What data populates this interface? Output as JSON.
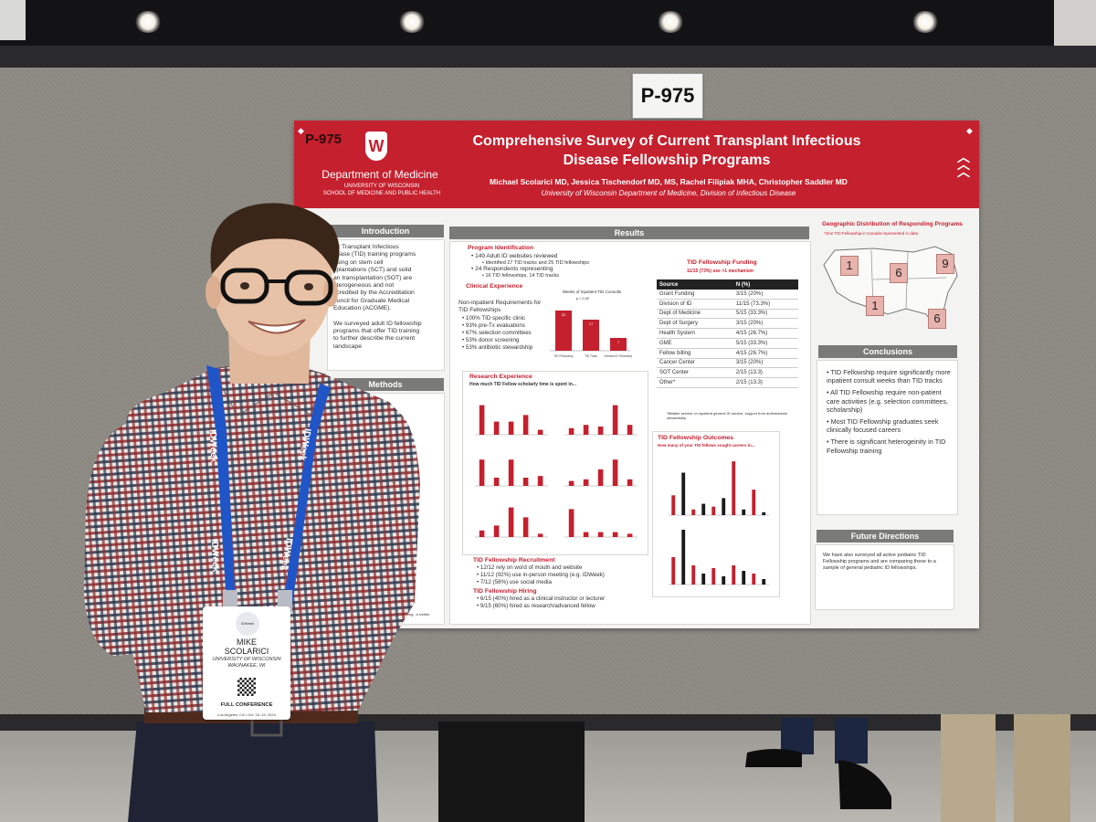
{
  "sign": {
    "label": "P-975"
  },
  "poster": {
    "number": "P-975",
    "department": "Department of Medicine",
    "university": "UNIVERSITY OF WISCONSIN",
    "school": "SCHOOL OF MEDICINE AND PUBLIC HEALTH",
    "title_line1": "Comprehensive Survey of Current Transplant Infectious",
    "title_line2": "Disease Fellowship Programs",
    "authors": "Michael Scolarici MD, Jessica Tischendorf MD, MS, Rachel Filipiak MHA, Christopher Saddler MD",
    "affiliation": "University of Wisconsin Department of Medicine, Division of Infectious Disease",
    "introduction": {
      "heading": "Introduction",
      "lines": [
        "ult Transplant Infectious",
        "sease (TID) training programs",
        "using on stem cell",
        "splantations (SCT) and solid",
        "an transplantation (SOT) are",
        "eterogeneous and not",
        "ccredited by the Accreditation",
        "ouncil for Graduate Medical",
        "Education (ACGME).",
        "",
        "We surveyed adult ID fellowship",
        "programs that offer TID training",
        "to further describe the current",
        "landscape"
      ]
    },
    "methods": {
      "heading": "Methods",
      "lines": [
        "wship websites",
        "D training.",
        "",
        "ative",
        "tracks",
        "",
        "ed",
        "unding,",
        "",
        "d",
        "ted the",
        "",
        "t email",
        "y",
        "s Disease",
        "AST",
        "",
        "p",
        "Whitney U",
        "statistical"
      ],
      "footer": "ment for Statistical Computing...d ranthe"
    },
    "results": {
      "heading": "Results",
      "program_identification": {
        "heading": "Program Identification",
        "items": [
          "149 Adult ID websites reviewed",
          "Identified 27 TID tracks and 25 TID fellowships",
          "24 Respondents representing",
          "16 TID fellowships, 14 TID tracks"
        ]
      },
      "clinical_experience": {
        "heading": "Clinical Experience",
        "intro": "Non-inpatient Requirements for TID Fellowships",
        "items": [
          "100% TID specific clinic",
          "93% pre-Tx evaluations",
          "67% selection committees",
          "53% donor screening",
          "53% antibiotic stewardship"
        ]
      },
      "research_experience": {
        "heading": "Research Experience",
        "subheading": "How much TID Fellow scholarly time is spent in..."
      },
      "recruitment": {
        "heading": "TID Fellowship Recruitment",
        "items": [
          "12/12 rely on word of mouth and website",
          "11/12 (92%) use in-person meeting (e.g. IDWeek)",
          "7/12 (58%) use social media"
        ]
      },
      "hiring": {
        "heading": "TID Fellowship Hiring",
        "items": [
          "6/15 (40%) hired as a clinical instructor or lecturer",
          "9/15 (60%) hired as research/advanced fellow"
        ]
      },
      "funding": {
        "heading": "TID Fellowship Funding",
        "subheading": "11/15 (73%) use >1 mechanism",
        "columns": [
          "Source",
          "N (%)"
        ],
        "rows": [
          [
            "Grant Funding",
            "3/15 (20%)"
          ],
          [
            "Division of ID",
            "11/15 (73.3%)"
          ],
          [
            "Dept of Medicine",
            "5/15 (33.3%)"
          ],
          [
            "Dept of Surgery",
            "3/15 (20%)"
          ],
          [
            "Health System",
            "4/15 (26.7%)"
          ],
          [
            "GME",
            "5/15 (33.3%)"
          ],
          [
            "Fellow billing",
            "4/15 (26.7%)"
          ],
          [
            "Cancer Center",
            "3/15 (20%)"
          ],
          [
            "SOT Center",
            "2/15 (13.3)"
          ],
          [
            "Other*",
            "2/15 (13.3)"
          ]
        ],
        "footnote": "*Billable service on inpatient general ID service, support from antimicrobial stewardship"
      },
      "outcomes": {
        "heading": "TID Fellowship Outcomes",
        "subheading": "How many of your TID fellows sought careers in..."
      }
    },
    "geographic": {
      "heading": "Geographic Distribution of Responding Programs",
      "note": "*One TID Fellowship in Canada represented in data",
      "regions": [
        "1",
        "6",
        "9",
        "1",
        "6"
      ]
    },
    "conclusions": {
      "heading": "Conclusions",
      "items": [
        "TID Fellowship require significantly more inpatient consult weeks than TID tracks",
        "All TID Fellowship require non-patient care activities (e.g. selection committees, scholarship)",
        "Most TID Fellowship graduates seek clinically focused careers",
        "There is significant heterogeinity in TID Fellowship training"
      ]
    },
    "future": {
      "heading": "Future Directions",
      "text": "We have also surveyed all active pediatric TID Fellowship programs and are comparing these to a sample of general pediatric ID fellowships."
    }
  },
  "chart_data": {
    "type": "bar",
    "title": "Weeks of Inpatient TID Consults",
    "annotation": "p = 0.02",
    "categories": [
      "TID Fellowship",
      "TID Track",
      "General ID Fellowship"
    ],
    "values": [
      22,
      17,
      7
    ],
    "ylim": [
      0,
      26
    ]
  },
  "lanyard": {
    "text": "IDWeek"
  },
  "badge": {
    "logo": "IDWeek",
    "first_name": "MIKE",
    "last_name": "SCOLARICI",
    "org": "UNIVERSITY OF WISCONSIN",
    "city": "WAUNAKEE, WI",
    "tier": "FULL CONFERENCE",
    "location": "Los Angeles, CA • Oct. 16–19, 2024"
  },
  "colors": {
    "poster_red": "#c5202e",
    "panel_gray": "#7a7a78",
    "shirt_red": "#8e2a2e",
    "shirt_navy": "#2c3850",
    "lanyard_blue": "#1f55c7"
  }
}
